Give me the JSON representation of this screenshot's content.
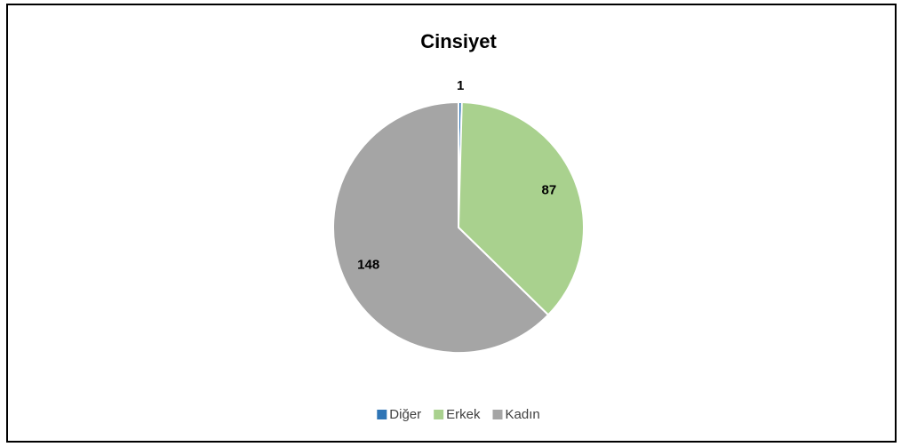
{
  "chart_data": {
    "type": "pie",
    "title": "Cinsiyet",
    "categories": [
      "Diğer",
      "Erkek",
      "Kadın"
    ],
    "values": [
      1,
      87,
      148
    ],
    "colors": [
      "#2e75b6",
      "#a9d18e",
      "#a5a5a5"
    ],
    "legend": "bottom"
  }
}
